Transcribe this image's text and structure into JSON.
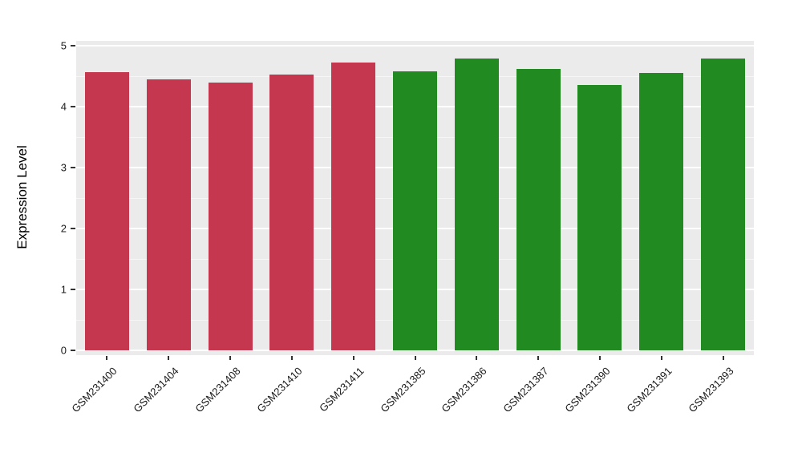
{
  "chart_data": {
    "type": "bar",
    "title": "",
    "xlabel": "",
    "ylabel": "Expression Level",
    "ylim": [
      0,
      5
    ],
    "yticks": [
      0,
      1,
      2,
      3,
      4,
      5
    ],
    "minor_ticks": [
      0.5,
      1.5,
      2.5,
      3.5,
      4.5
    ],
    "grid": "major and minor horizontal white gridlines on gray panel",
    "legend_position": "none",
    "categories": [
      "GSM231400",
      "GSM231404",
      "GSM231408",
      "GSM231410",
      "GSM231411",
      "GSM231385",
      "GSM231386",
      "GSM231387",
      "GSM231390",
      "GSM231391",
      "GSM231393"
    ],
    "values": [
      4.57,
      4.45,
      4.39,
      4.53,
      4.73,
      4.58,
      4.79,
      4.62,
      4.36,
      4.55,
      4.79
    ],
    "bar_colors": [
      "#c5374e",
      "#c5374e",
      "#c5374e",
      "#c5374e",
      "#c5374e",
      "#218b22",
      "#218b22",
      "#218b22",
      "#218b22",
      "#218b22",
      "#218b22"
    ],
    "groups": [
      {
        "name": "red-group",
        "color": "#c5374e",
        "categories": [
          "GSM231400",
          "GSM231404",
          "GSM231408",
          "GSM231410",
          "GSM231411"
        ]
      },
      {
        "name": "green-group",
        "color": "#218b22",
        "categories": [
          "GSM231385",
          "GSM231386",
          "GSM231387",
          "GSM231390",
          "GSM231391",
          "GSM231393"
        ]
      }
    ],
    "colors": {
      "panel_background": "#ebebeb",
      "grid": "#ffffff",
      "axis_text": "#1a1a1a",
      "page_background": "#ffffff"
    }
  }
}
